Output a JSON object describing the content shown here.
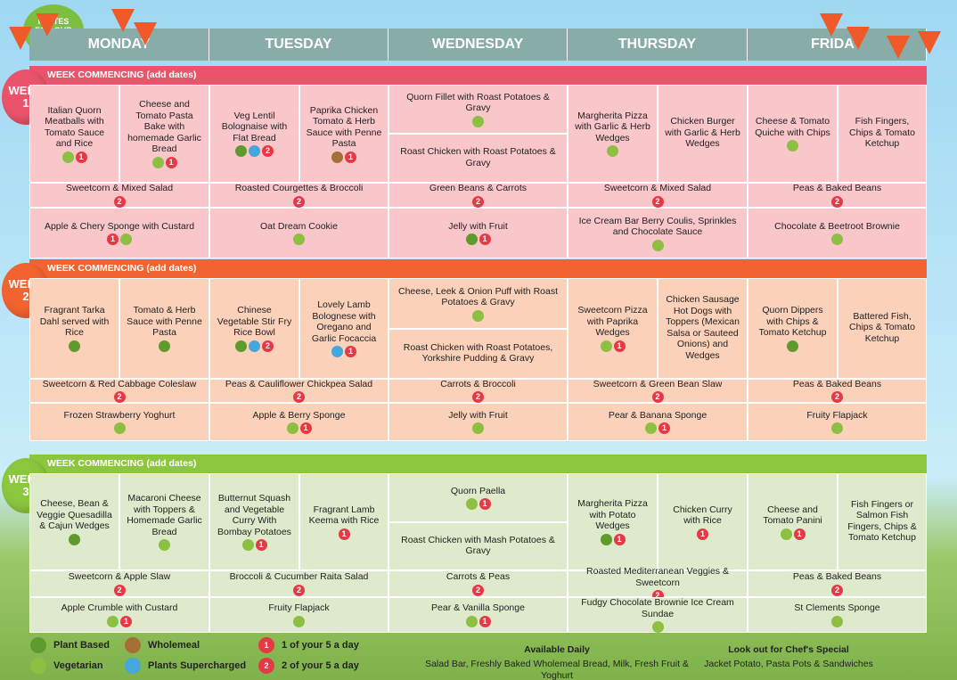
{
  "logo": "PLATES FOR OUR PLANET",
  "days": [
    "MONDAY",
    "TUESDAY",
    "WEDNESDAY",
    "THURSDAY",
    "FRIDAY"
  ],
  "weeks": [
    {
      "balloon": [
        "WEEK",
        "1"
      ],
      "banner": "WEEK COMMENCING (add dates)",
      "banner_color": "#e9546b",
      "cell_color": "#f9c6ca",
      "mains": [
        [
          {
            "text": "Italian Quorn Meatballs with Tomato Sauce and Rice",
            "icons": [
              "veg",
              "1"
            ]
          },
          {
            "text": "Cheese and Tomato Pasta Bake with homemade Garlic Bread",
            "icons": [
              "veg",
              "1"
            ]
          }
        ],
        [
          {
            "text": "Veg Lentil Bolognaise with Flat Bread",
            "icons": [
              "plant",
              "super",
              "2"
            ]
          },
          {
            "text": "Paprika Chicken Tomato & Herb Sauce with Penne Pasta",
            "icons": [
              "wholemeal",
              "1"
            ]
          }
        ],
        [
          {
            "text": "Quorn Fillet with Roast Potatoes & Gravy",
            "icons": [
              "veg"
            ]
          },
          {
            "text": "Roast Chicken with Roast Potatoes & Gravy",
            "icons": []
          }
        ],
        [
          {
            "text": "Margherita Pizza with Garlic & Herb Wedges",
            "icons": [
              "veg"
            ]
          },
          {
            "text": "Chicken Burger with Garlic & Herb Wedges",
            "icons": []
          }
        ],
        [
          {
            "text": "Cheese & Tomato Quiche with Chips",
            "icons": [
              "veg"
            ]
          },
          {
            "text": "Fish Fingers, Chips & Tomato Ketchup",
            "icons": []
          }
        ]
      ],
      "sides": [
        {
          "text": "Sweetcorn & Mixed Salad",
          "icons": [
            "2"
          ]
        },
        {
          "text": "Roasted Courgettes & Broccoli",
          "icons": [
            "2"
          ]
        },
        {
          "text": "Green Beans & Carrots",
          "icons": [
            "2"
          ]
        },
        {
          "text": "Sweetcorn & Mixed Salad",
          "icons": [
            "2"
          ]
        },
        {
          "text": "Peas & Baked Beans",
          "icons": [
            "2"
          ]
        }
      ],
      "desserts": [
        {
          "text": "Apple & Chery Sponge with Custard",
          "icons": [
            "1",
            "veg"
          ]
        },
        {
          "text": "Oat Dream Cookie",
          "icons": [
            "veg"
          ]
        },
        {
          "text": "Jelly with Fruit",
          "icons": [
            "plant",
            "1"
          ]
        },
        {
          "text": "Ice Cream Bar Berry Coulis, Sprinkles and Chocolate Sauce",
          "icons": [
            "veg"
          ]
        },
        {
          "text": "Chocolate & Beetroot Brownie",
          "icons": [
            "veg"
          ]
        }
      ]
    },
    {
      "balloon": [
        "WEEK",
        "2"
      ],
      "banner": "WEEK COMMENCING (add dates)",
      "banner_color": "#f26330",
      "cell_color": "#fcd1ba",
      "mains": [
        [
          {
            "text": "Fragrant Tarka Dahl served with Rice",
            "icons": [
              "plant"
            ]
          },
          {
            "text": "Tomato & Herb Sauce with Penne Pasta",
            "icons": [
              "plant"
            ]
          }
        ],
        [
          {
            "text": "Chinese Vegetable Stir Fry Rice Bowl",
            "icons": [
              "plant",
              "super",
              "2"
            ]
          },
          {
            "text": "Lovely Lamb Bolognese with Oregano and Garlic Focaccia",
            "icons": [
              "super",
              "1"
            ]
          }
        ],
        [
          {
            "text": "Cheese, Leek & Onion Puff with Roast Potatoes & Gravy",
            "icons": [
              "veg"
            ]
          },
          {
            "text": "Roast Chicken with Roast Potatoes, Yorkshire Pudding & Gravy",
            "icons": []
          }
        ],
        [
          {
            "text": "Sweetcorn Pizza with Paprika Wedges",
            "icons": [
              "veg",
              "1"
            ]
          },
          {
            "text": "Chicken Sausage Hot Dogs with Toppers (Mexican Salsa or Sauteed Onions) and Wedges",
            "icons": []
          }
        ],
        [
          {
            "text": "Quorn Dippers with Chips & Tomato Ketchup",
            "icons": [
              "plant"
            ]
          },
          {
            "text": "Battered Fish, Chips & Tomato Ketchup",
            "icons": []
          }
        ]
      ],
      "sides": [
        {
          "text": "Sweetcorn & Red Cabbage Coleslaw",
          "icons": [
            "2"
          ]
        },
        {
          "text": "Peas & Cauliflower Chickpea Salad",
          "icons": [
            "2"
          ]
        },
        {
          "text": "Carrots & Broccoli",
          "icons": [
            "2"
          ]
        },
        {
          "text": "Sweetcorn & Green Bean Slaw",
          "icons": [
            "2"
          ]
        },
        {
          "text": "Peas & Baked Beans",
          "icons": [
            "2"
          ]
        }
      ],
      "desserts": [
        {
          "text": "Frozen Strawberry Yoghurt",
          "icons": [
            "veg"
          ]
        },
        {
          "text": "Apple & Berry Sponge",
          "icons": [
            "veg",
            "1"
          ]
        },
        {
          "text": "Jelly with Fruit",
          "icons": [
            "veg"
          ]
        },
        {
          "text": "Pear & Banana Sponge",
          "icons": [
            "veg",
            "1"
          ]
        },
        {
          "text": "Fruity Flapjack",
          "icons": [
            "veg"
          ]
        }
      ]
    },
    {
      "balloon": [
        "WEEK",
        "3"
      ],
      "banner": "WEEK COMMENCING (add dates)",
      "banner_color": "#8cc63f",
      "cell_color": "#deeacb",
      "mains": [
        [
          {
            "text": "Cheese, Bean & Veggie Quesadilla & Cajun Wedges",
            "icons": [
              "plant"
            ]
          },
          {
            "text": "Macaroni Cheese with Toppers & Homemade Garlic Bread",
            "icons": [
              "veg"
            ]
          }
        ],
        [
          {
            "text": "Butternut Squash and Vegetable Curry With Bombay Potatoes",
            "icons": [
              "veg",
              "1"
            ]
          },
          {
            "text": "Fragrant Lamb Keema with Rice",
            "icons": [
              "1"
            ]
          }
        ],
        [
          {
            "text": "Quorn Paella",
            "icons": [
              "veg",
              "1"
            ]
          },
          {
            "text": "Roast Chicken with Mash Potatoes & Gravy",
            "icons": []
          }
        ],
        [
          {
            "text": "Margherita Pizza with Potato Wedges",
            "icons": [
              "plant",
              "1"
            ]
          },
          {
            "text": "Chicken Curry with Rice",
            "icons": [
              "1"
            ]
          }
        ],
        [
          {
            "text": "Cheese and Tomato Panini",
            "icons": [
              "veg",
              "1"
            ]
          },
          {
            "text": "Fish Fingers or Salmon Fish Fingers, Chips & Tomato Ketchup",
            "icons": []
          }
        ]
      ],
      "sides": [
        {
          "text": "Sweetcorn & Apple Slaw",
          "icons": [
            "2"
          ]
        },
        {
          "text": "Broccoli & Cucumber Raita Salad",
          "icons": [
            "2"
          ]
        },
        {
          "text": "Carrots & Peas",
          "icons": [
            "2"
          ]
        },
        {
          "text": "Roasted Mediterranean Veggies & Sweetcorn",
          "icons": [
            "2"
          ]
        },
        {
          "text": "Peas & Baked Beans",
          "icons": [
            "2"
          ]
        }
      ],
      "desserts": [
        {
          "text": "Apple Crumble with Custard",
          "icons": [
            "veg",
            "1"
          ]
        },
        {
          "text": "Fruity Flapjack",
          "icons": [
            "veg"
          ]
        },
        {
          "text": "Pear & Vanilla Sponge",
          "icons": [
            "veg",
            "1"
          ]
        },
        {
          "text": "Fudgy Chocolate Brownie Ice Cream Sundae",
          "icons": [
            "veg"
          ]
        },
        {
          "text": "St Clements Sponge",
          "icons": [
            "veg"
          ]
        }
      ]
    }
  ],
  "legend": [
    {
      "icon": "plant",
      "label": "Plant Based"
    },
    {
      "icon": "veg",
      "label": "Vegetarian"
    },
    {
      "icon": "wholemeal",
      "label": "Wholemeal"
    },
    {
      "icon": "super",
      "label": "Plants Supercharged"
    },
    {
      "icon": "1",
      "label": "1 of your 5 a day"
    },
    {
      "icon": "2",
      "label": "2 of your 5 a day"
    }
  ],
  "available": {
    "title": "Available Daily",
    "text": "Salad Bar, Freshly Baked Wholemeal Bread, Milk, Fresh Fruit & Yoghurt"
  },
  "special": {
    "title": "Look out for Chef's Special",
    "text": "Jacket Potato, Pasta Pots & Sandwiches"
  }
}
